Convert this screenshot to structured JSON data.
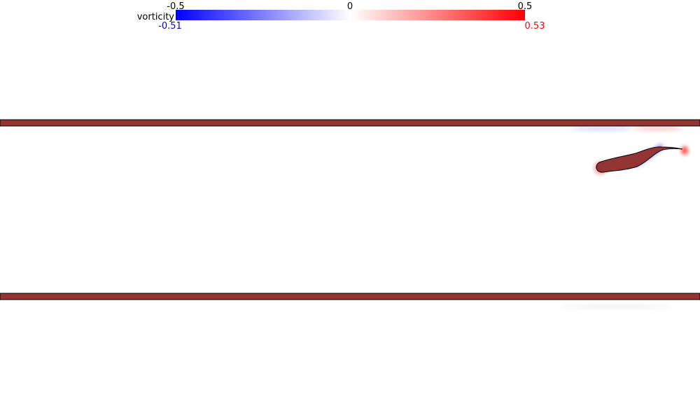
{
  "colorbar": {
    "label": "vorticity",
    "tick_min": "-0.5",
    "tick_mid": "0",
    "tick_max": "0.5",
    "data_min": "-0.51",
    "data_max": "0.53",
    "color_negative": "#0000ff",
    "color_zero": "#ffffff",
    "color_positive": "#ff0000"
  },
  "walls": {
    "fill": "#943535",
    "stroke": "#000000"
  },
  "swimmer": {
    "fill": "#943535",
    "stroke": "#000000"
  }
}
